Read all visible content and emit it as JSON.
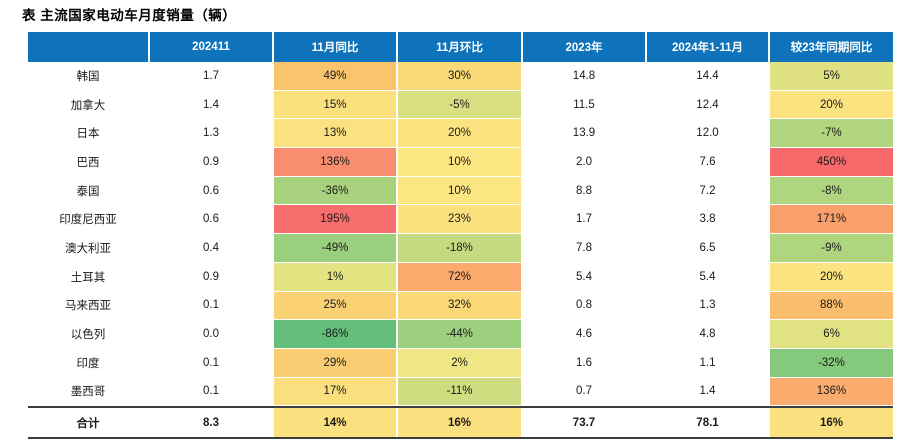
{
  "title": "表 主流国家电动车月度销量（辆）",
  "colors": {
    "header_bg": "#0E73BA",
    "header_text": "#FFFFFF",
    "body_text": "#1A1A1A",
    "total_border": "#3D3D3D",
    "scale_min_green": "#63BE7B",
    "scale_mid_yellow": "#FBE07F",
    "scale_max_red": "#F8696B"
  },
  "chart_data": {
    "type": "table",
    "title": "表 主流国家电动车月度销量（辆）",
    "columns": [
      "",
      "202411",
      "11月同比",
      "11月环比",
      "2023年",
      "2024年1-11月",
      "较23年同期同比"
    ],
    "rows": [
      {
        "name": "韩国",
        "m202411": "1.7",
        "yoy": "49%",
        "yoy_bg": "#FAC46D",
        "mom": "30%",
        "mom_bg": "#FAD977",
        "y2023": "14.8",
        "y2024_1_11": "14.4",
        "vs23": "5%",
        "vs23_bg": "#DFE182"
      },
      {
        "name": "加拿大",
        "m202411": "1.4",
        "yoy": "15%",
        "yoy_bg": "#FBE07E",
        "mom": "-5%",
        "mom_bg": "#D9DF81",
        "y2023": "11.5",
        "y2024_1_11": "12.4",
        "vs23": "20%",
        "vs23_bg": "#FBE37F"
      },
      {
        "name": "日本",
        "m202411": "1.3",
        "yoy": "13%",
        "yoy_bg": "#FBE17F",
        "mom": "20%",
        "mom_bg": "#FBE37F",
        "y2023": "13.9",
        "y2024_1_11": "12.0",
        "vs23": "-7%",
        "vs23_bg": "#B2D67F"
      },
      {
        "name": "巴西",
        "m202411": "0.9",
        "yoy": "136%",
        "yoy_bg": "#F98D6F",
        "mom": "10%",
        "mom_bg": "#FCE681",
        "y2023": "2.0",
        "y2024_1_11": "7.6",
        "vs23": "450%",
        "vs23_bg": "#F8696B"
      },
      {
        "name": "泰国",
        "m202411": "0.6",
        "yoy": "-36%",
        "yoy_bg": "#A9D27E",
        "mom": "10%",
        "mom_bg": "#FCE681",
        "y2023": "8.8",
        "y2024_1_11": "7.2",
        "vs23": "-8%",
        "vs23_bg": "#B0D57F"
      },
      {
        "name": "印度尼西亚",
        "m202411": "0.6",
        "yoy": "195%",
        "yoy_bg": "#F86E6D",
        "mom": "23%",
        "mom_bg": "#FBE17E",
        "y2023": "1.7",
        "y2024_1_11": "3.8",
        "vs23": "171%",
        "vs23_bg": "#F99F6C"
      },
      {
        "name": "澳大利亚",
        "m202411": "0.4",
        "yoy": "-49%",
        "yoy_bg": "#9ACF7D",
        "mom": "-18%",
        "mom_bg": "#C5DA80",
        "y2023": "7.8",
        "y2024_1_11": "6.5",
        "vs23": "-9%",
        "vs23_bg": "#AFD57F"
      },
      {
        "name": "土耳其",
        "m202411": "0.9",
        "yoy": "1%",
        "yoy_bg": "#E3E382",
        "mom": "72%",
        "mom_bg": "#FAAA6D",
        "y2023": "5.4",
        "y2024_1_11": "5.4",
        "vs23": "20%",
        "vs23_bg": "#FBE37F"
      },
      {
        "name": "马来西亚",
        "m202411": "0.1",
        "yoy": "25%",
        "yoy_bg": "#FAD274",
        "mom": "32%",
        "mom_bg": "#FAD876",
        "y2023": "0.8",
        "y2024_1_11": "1.3",
        "vs23": "88%",
        "vs23_bg": "#FBBE6D"
      },
      {
        "name": "以色列",
        "m202411": "0.0",
        "yoy": "-86%",
        "yoy_bg": "#63BE7B",
        "mom": "-44%",
        "mom_bg": "#9DD07E",
        "y2023": "4.6",
        "y2024_1_11": "4.8",
        "vs23": "6%",
        "vs23_bg": "#E1E282"
      },
      {
        "name": "印度",
        "m202411": "0.1",
        "yoy": "29%",
        "yoy_bg": "#FACD72",
        "mom": "2%",
        "mom_bg": "#EFE783",
        "y2023": "1.6",
        "y2024_1_11": "1.1",
        "vs23": "-32%",
        "vs23_bg": "#85C97C"
      },
      {
        "name": "墨西哥",
        "m202411": "0.1",
        "yoy": "17%",
        "yoy_bg": "#FBDE7D",
        "mom": "-11%",
        "mom_bg": "#CFDC80",
        "y2023": "0.7",
        "y2024_1_11": "1.4",
        "vs23": "136%",
        "vs23_bg": "#FAAC6E"
      }
    ],
    "total_row": {
      "name": "合计",
      "m202411": "8.3",
      "yoy": "14%",
      "yoy_bg": "#FBE07F",
      "mom": "16%",
      "mom_bg": "#FBE07F",
      "y2023": "73.7",
      "y2024_1_11": "78.1",
      "vs23": "16%",
      "vs23_bg": "#FBE07F",
      "is_total": true
    }
  }
}
